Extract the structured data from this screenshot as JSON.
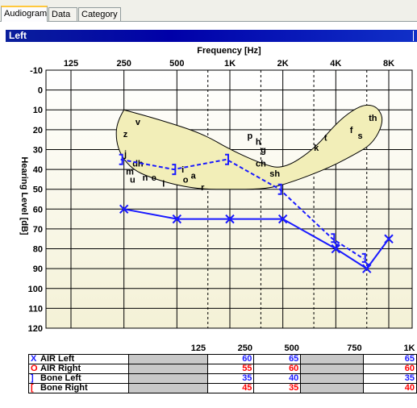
{
  "tabs": [
    {
      "label": "Audiogram",
      "active": true
    },
    {
      "label": "Data",
      "active": false
    },
    {
      "label": "Category",
      "active": false
    }
  ],
  "panel_title": "Left",
  "colors": {
    "air_left": "#1a1aff",
    "air_right": "#ff0000",
    "bone_left": "#1a1aff",
    "bone_right": "#ff0000",
    "banana_fill": "#f2eeb8",
    "title_bar": "#0000a8"
  },
  "chart_data": {
    "type": "line",
    "title": "Frequency [Hz]",
    "xlabel": "Frequency [Hz]",
    "ylabel": "Hearing Level [dB]",
    "x_ticks": [
      "125",
      "250",
      "500",
      "1K",
      "2K",
      "4K",
      "8K"
    ],
    "x_tick_values": [
      125,
      250,
      500,
      1000,
      2000,
      4000,
      8000
    ],
    "y_ticks": [
      -10,
      0,
      10,
      20,
      30,
      40,
      50,
      60,
      70,
      80,
      90,
      100,
      110,
      120
    ],
    "ylim": [
      -10,
      120
    ],
    "y_inverted": true,
    "x_scale": "log",
    "dashed_gridlines_at": [
      750,
      1500,
      3000,
      6000
    ],
    "series": [
      {
        "name": "AIR Left",
        "marker": "X",
        "x": [
          250,
          500,
          1000,
          2000,
          4000,
          6000,
          8000
        ],
        "y": [
          60,
          65,
          65,
          65,
          80,
          90,
          75
        ]
      },
      {
        "name": "Bone Left",
        "marker": "]",
        "x": [
          250,
          500,
          1000,
          2000,
          4000,
          6000
        ],
        "y": [
          35,
          40,
          35,
          50,
          75,
          85
        ]
      }
    ],
    "speech_banana": {
      "phonemes": [
        {
          "label": "v",
          "f": 300,
          "db": 16
        },
        {
          "label": "z",
          "f": 255,
          "db": 22
        },
        {
          "label": "j",
          "f": 255,
          "db": 32
        },
        {
          "label": "m",
          "f": 270,
          "db": 41
        },
        {
          "label": "dh",
          "f": 300,
          "db": 37
        },
        {
          "label": "u",
          "f": 280,
          "db": 45
        },
        {
          "label": "n",
          "f": 330,
          "db": 44
        },
        {
          "label": "e",
          "f": 370,
          "db": 44
        },
        {
          "label": "l",
          "f": 420,
          "db": 47
        },
        {
          "label": "o",
          "f": 560,
          "db": 45
        },
        {
          "label": "a",
          "f": 620,
          "db": 43
        },
        {
          "label": "i",
          "f": 540,
          "db": 40
        },
        {
          "label": "r",
          "f": 700,
          "db": 49
        },
        {
          "label": "p",
          "f": 1300,
          "db": 23
        },
        {
          "label": "h",
          "f": 1450,
          "db": 26
        },
        {
          "label": "g",
          "f": 1550,
          "db": 30
        },
        {
          "label": "ch",
          "f": 1500,
          "db": 37
        },
        {
          "label": "sh",
          "f": 1800,
          "db": 42
        },
        {
          "label": "k",
          "f": 3100,
          "db": 29
        },
        {
          "label": "t",
          "f": 3500,
          "db": 24
        },
        {
          "label": "f",
          "f": 4900,
          "db": 20
        },
        {
          "label": "s",
          "f": 5500,
          "db": 23
        },
        {
          "label": "th",
          "f": 6500,
          "db": 14
        }
      ]
    }
  },
  "table": {
    "columns": [
      "125",
      "250",
      "500",
      "750",
      "1K"
    ],
    "rows": [
      {
        "label": "AIR Left",
        "symbol": "X",
        "values": [
          "",
          "60",
          "65",
          "",
          "65"
        ],
        "color": "#1a1aff"
      },
      {
        "label": "AIR Right",
        "symbol": "O",
        "values": [
          "",
          "55",
          "60",
          "",
          "60"
        ],
        "color": "#ff0000"
      },
      {
        "label": "Bone Left",
        "symbol": "]",
        "values": [
          "",
          "35",
          "40",
          "",
          "35"
        ],
        "color": "#1a1aff"
      },
      {
        "label": "Bone Right",
        "symbol": "[",
        "values": [
          "",
          "45",
          "35",
          "",
          "40"
        ],
        "color": "#ff0000"
      }
    ]
  }
}
